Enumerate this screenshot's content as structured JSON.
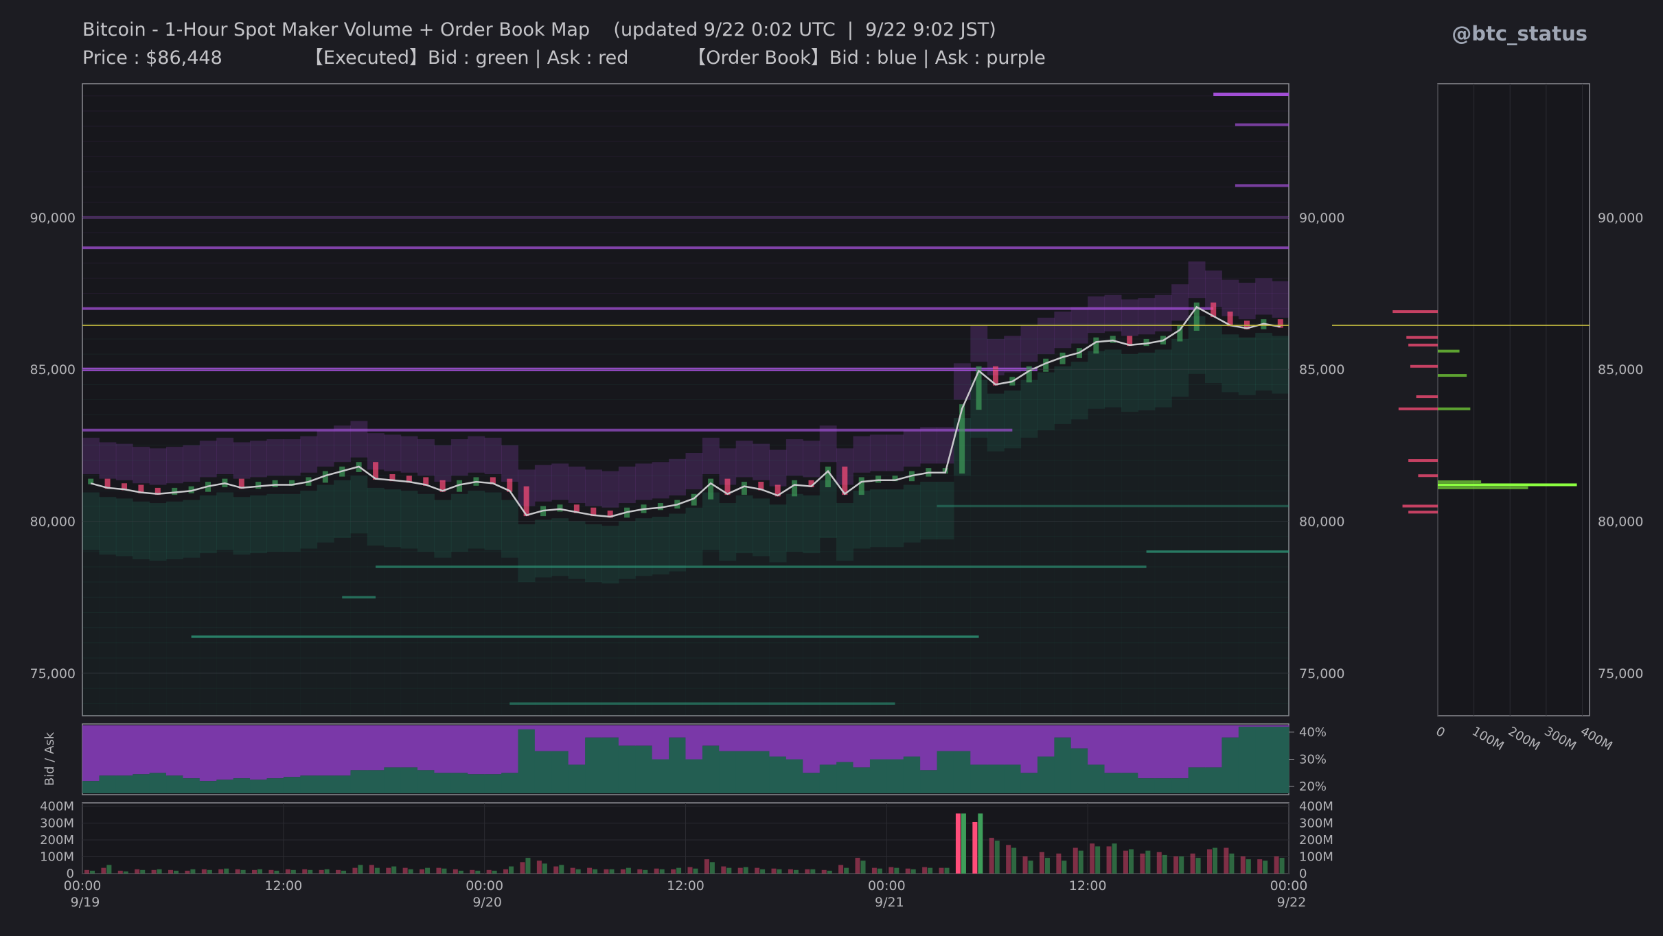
{
  "header": {
    "title": "Bitcoin - 1-Hour Spot Maker Volume + Order Book Map    (updated 9/22 0:02 UTC  |  9/22 9:02 JST)",
    "subtitle": "Price : $86,448              【Executed】Bid : green | Ask : red          【Order Book】Bid : blue | Ask : purple",
    "brand": "@btc_status"
  },
  "colors": {
    "background": "#1c1c22",
    "panel": "#17171c",
    "price_line": "#c9c9cc",
    "current_price": "#c8c040",
    "bid_exec": "#3e9e5a",
    "ask_exec": "#ff4d7a",
    "ob_ask": "#a24fd6",
    "ob_bid": "#2f9e7e",
    "bidask_ask": "#7a38a8",
    "bidask_bid": "#235e52",
    "profile_bid": "#8cff40",
    "axis_text": "#b4b4b8"
  },
  "chart_data": [
    {
      "type": "line",
      "name": "price-order-book-map",
      "x_ticks": [
        "00:00\n9/19",
        "12:00",
        "00:00\n9/20",
        "12:00",
        "00:00\n9/21",
        "12:00",
        "00:00\n9/22"
      ],
      "x_range_hours": [
        0,
        72
      ],
      "y_ticks": [
        "75,000",
        "80,000",
        "85,000",
        "90,000"
      ],
      "ylim": [
        73600,
        94400
      ],
      "current_price": 86448,
      "series": [
        {
          "values": [
            81250,
            81100,
            81050,
            80950,
            80900,
            80950,
            81000,
            81150,
            81250,
            81100,
            81150,
            81200,
            81200,
            81300,
            81500,
            81650,
            81800,
            81400,
            81350,
            81300,
            81200,
            81000,
            81200,
            81300,
            81250,
            81000,
            80200,
            80350,
            80400,
            80300,
            80200,
            80150,
            80300,
            80400,
            80450,
            80550,
            80750,
            81250,
            80900,
            81150,
            81050,
            80850,
            81200,
            81150,
            81650,
            80900,
            81300,
            81350,
            81350,
            81500,
            81600,
            81600,
            83700,
            84950,
            84500,
            84600,
            84950,
            85200,
            85400,
            85550,
            85900,
            85950,
            85800,
            85850,
            85950,
            86300,
            87050,
            86750,
            86450,
            86350,
            86500,
            86400
          ]
        }
      ],
      "order_book_ask_levels": [
        {
          "price": 94050,
          "x_start": 67.5,
          "x_end": 72,
          "strength": 1.0
        },
        {
          "price": 93050,
          "x_start": 68.8,
          "x_end": 72,
          "strength": 0.7
        },
        {
          "price": 91050,
          "x_start": 68.8,
          "x_end": 72,
          "strength": 0.7
        },
        {
          "price": 89000,
          "x_start": 0,
          "x_end": 72,
          "strength": 0.75
        },
        {
          "price": 87000,
          "x_start": 0,
          "x_end": 67.5,
          "strength": 0.75
        },
        {
          "price": 85000,
          "x_start": 0,
          "x_end": 57,
          "strength": 0.95
        },
        {
          "price": 83000,
          "x_start": 0,
          "x_end": 55.5,
          "strength": 0.7
        },
        {
          "price": 90000,
          "x_start": 0,
          "x_end": 72,
          "strength": 0.35
        }
      ],
      "order_book_bid_levels": [
        {
          "price": 79000,
          "x_start": 63.5,
          "x_end": 72,
          "strength": 0.7
        },
        {
          "price": 78500,
          "x_start": 17.5,
          "x_end": 63.5,
          "strength": 0.6
        },
        {
          "price": 77500,
          "x_start": 15.5,
          "x_end": 17.5,
          "strength": 0.6
        },
        {
          "price": 76200,
          "x_start": 6.5,
          "x_end": 53.5,
          "strength": 0.75
        },
        {
          "price": 74000,
          "x_start": 25.5,
          "x_end": 48.5,
          "strength": 0.55
        },
        {
          "price": 80500,
          "x_start": 51,
          "x_end": 72,
          "strength": 0.4
        }
      ]
    },
    {
      "type": "area",
      "name": "bid-ask-ratio",
      "ylabel": "Bid / Ask",
      "y_ticks": [
        "40%",
        "30%",
        "20%"
      ],
      "ylim": [
        17,
        43
      ],
      "values": [
        22,
        24,
        24,
        24.5,
        25,
        24,
        23,
        22,
        22.5,
        23,
        22.5,
        23,
        23.5,
        24,
        24,
        24,
        26,
        26,
        27,
        27,
        26,
        25,
        25,
        24.5,
        24.5,
        25,
        41,
        33,
        33,
        28,
        38,
        38,
        35,
        35,
        30,
        38,
        30,
        35,
        33,
        33,
        33,
        31,
        30,
        25,
        28,
        29,
        27,
        30,
        30,
        31,
        26,
        33,
        33,
        28,
        28,
        28,
        25,
        31,
        38,
        34,
        28,
        25,
        25,
        23,
        23,
        23,
        27,
        27,
        38,
        42,
        42,
        42
      ]
    },
    {
      "type": "bar",
      "name": "executed-volume",
      "y_ticks": [
        "400M",
        "300M",
        "200M",
        "100M",
        "0"
      ],
      "ylim": [
        0,
        420
      ],
      "series": [
        {
          "name": "Bid",
          "values": [
            20,
            60,
            15,
            25,
            30,
            20,
            30,
            25,
            35,
            25,
            30,
            20,
            25,
            25,
            30,
            20,
            60,
            40,
            50,
            30,
            40,
            35,
            20,
            20,
            20,
            50,
            110,
            70,
            60,
            30,
            30,
            30,
            40,
            25,
            30,
            40,
            35,
            80,
            40,
            45,
            30,
            30,
            25,
            30,
            20,
            40,
            90,
            35,
            40,
            30,
            40,
            40,
            420,
            420,
            230,
            180,
            90,
            110,
            90,
            160,
            190,
            210,
            170,
            160,
            130,
            120,
            110,
            180,
            140,
            100,
            90,
            110
          ]
        },
        {
          "name": "Ask",
          "values": [
            25,
            40,
            20,
            30,
            25,
            25,
            20,
            30,
            30,
            30,
            25,
            25,
            30,
            30,
            25,
            25,
            40,
            60,
            40,
            40,
            30,
            40,
            30,
            25,
            25,
            30,
            80,
            90,
            50,
            40,
            40,
            30,
            30,
            30,
            35,
            30,
            45,
            100,
            50,
            40,
            40,
            35,
            30,
            30,
            25,
            60,
            110,
            40,
            45,
            35,
            45,
            40,
            420,
            360,
            250,
            200,
            120,
            150,
            140,
            180,
            210,
            190,
            160,
            140,
            150,
            120,
            140,
            170,
            180,
            120,
            100,
            120
          ]
        }
      ]
    },
    {
      "type": "bar",
      "name": "order-book-depth-profile",
      "orientation": "horizontal",
      "x_ticks": [
        "0",
        "100M",
        "200M",
        "300M",
        "400M"
      ],
      "xlim": [
        0,
        420
      ],
      "y_ticks": [
        "75,000",
        "80,000",
        "85,000",
        "90,000"
      ],
      "ylim": [
        73600,
        94400
      ],
      "bid_levels": [
        {
          "price": 81200,
          "value": 385
        },
        {
          "price": 81100,
          "value": 250
        },
        {
          "price": 81300,
          "value": 120
        },
        {
          "price": 83700,
          "value": 90
        },
        {
          "price": 84800,
          "value": 80
        },
        {
          "price": 85600,
          "value": 60
        }
      ],
      "ask_levels": [
        {
          "price": 86900,
          "value": 230
        },
        {
          "price": 86050,
          "value": 160
        },
        {
          "price": 85800,
          "value": 150
        },
        {
          "price": 85100,
          "value": 140
        },
        {
          "price": 84100,
          "value": 110
        },
        {
          "price": 83700,
          "value": 200
        },
        {
          "price": 82000,
          "value": 150
        },
        {
          "price": 81500,
          "value": 100
        },
        {
          "price": 80500,
          "value": 180
        },
        {
          "price": 80300,
          "value": 150
        }
      ]
    }
  ]
}
